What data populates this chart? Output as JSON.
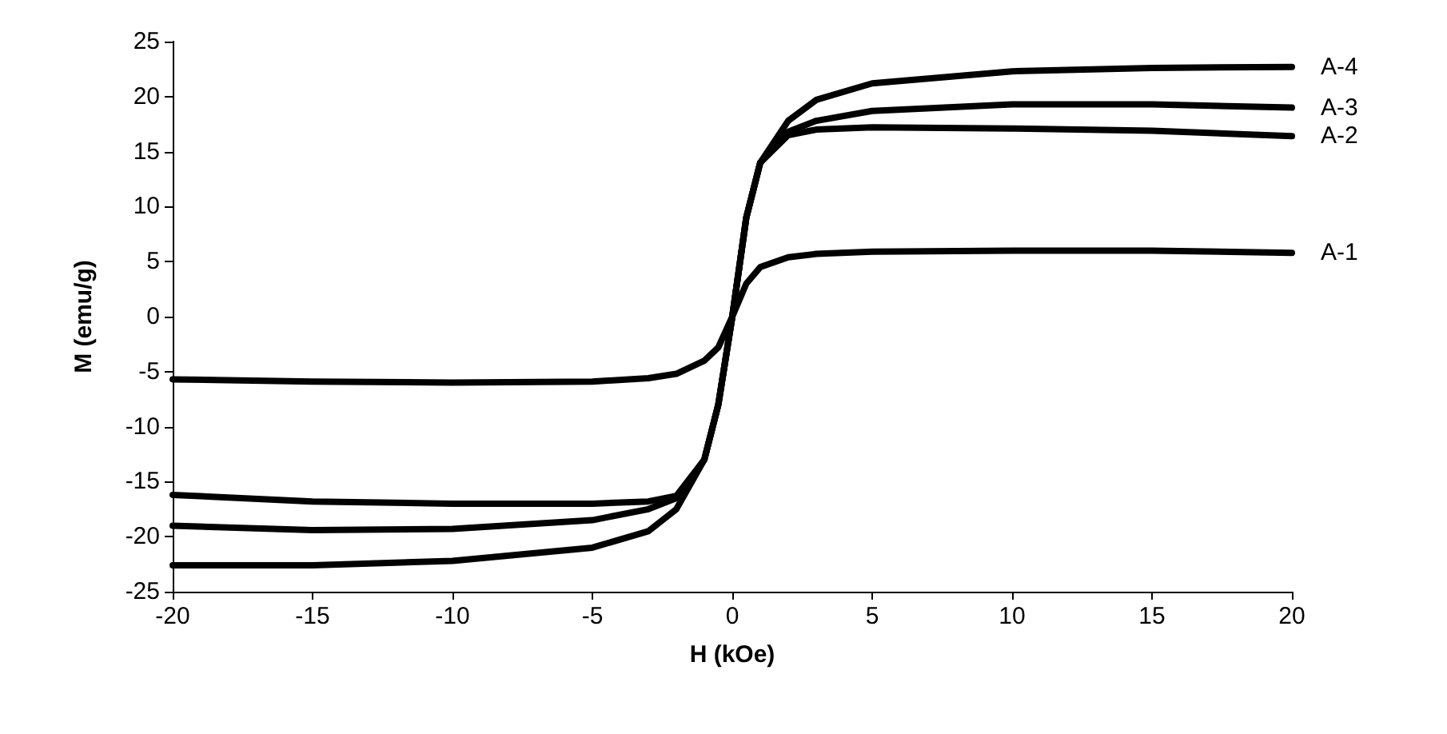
{
  "chart_data": {
    "type": "line",
    "xlabel": "H (kOe)",
    "ylabel": "M (emu/g)",
    "x": [
      -20,
      -15,
      -10,
      -5,
      -3,
      -2,
      -1,
      -0.5,
      0,
      0.5,
      1,
      2,
      3,
      5,
      10,
      15,
      20
    ],
    "xlim": [
      -20,
      20
    ],
    "xticks": [
      -20,
      -15,
      -10,
      -5,
      0,
      5,
      10,
      15,
      20
    ],
    "ylim": [
      -25,
      25
    ],
    "yticks": [
      -25,
      -20,
      -15,
      -10,
      -5,
      0,
      5,
      10,
      15,
      20,
      25
    ],
    "grid": false,
    "legend": false,
    "marker": "none",
    "line_style": "solid",
    "series": [
      {
        "name": "A-1",
        "color": "#000000",
        "values": [
          -5.7,
          -5.9,
          -6,
          -5.9,
          -5.6,
          -5.2,
          -4,
          -2.8,
          0,
          3,
          4.5,
          5.4,
          5.7,
          5.9,
          6,
          6,
          5.8
        ]
      },
      {
        "name": "A-2",
        "color": "#000000",
        "values": [
          -16.2,
          -16.8,
          -17,
          -17,
          -16.8,
          -16.3,
          -13,
          -8,
          0,
          9,
          14,
          16.5,
          17,
          17.2,
          17.1,
          16.9,
          16.4
        ]
      },
      {
        "name": "A-3",
        "color": "#000000",
        "values": [
          -19,
          -19.4,
          -19.3,
          -18.5,
          -17.5,
          -16.5,
          -13,
          -8,
          0,
          9,
          14,
          16.8,
          17.8,
          18.7,
          19.3,
          19.3,
          19
        ]
      },
      {
        "name": "A-4",
        "color": "#000000",
        "values": [
          -22.6,
          -22.6,
          -22.2,
          -21,
          -19.5,
          -17.5,
          -13,
          -8,
          0,
          9,
          14,
          17.8,
          19.7,
          21.2,
          22.3,
          22.6,
          22.7
        ]
      }
    ]
  }
}
